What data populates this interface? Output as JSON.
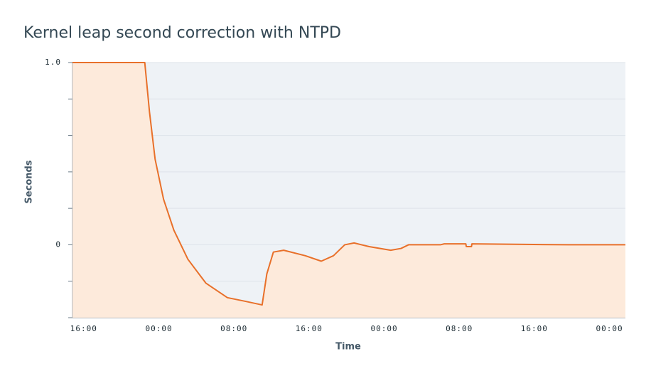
{
  "chart_data": {
    "type": "area",
    "title": "Kernel leap second correction with NTPD",
    "x_label": "Time",
    "y_label": "Seconds",
    "x": [
      -1.2,
      6.5,
      7.0,
      7.6,
      8.5,
      9.6,
      11.1,
      13.0,
      15.3,
      17.2,
      19.0,
      19.5,
      20.2,
      21.3,
      23.6,
      25.3,
      26.6,
      27.8,
      28.8,
      30.4,
      32.7,
      33.8,
      34.6,
      38.0,
      38.4,
      40.7,
      40.75,
      41.3,
      41.35,
      51.6,
      57.7
    ],
    "series": [
      {
        "name": "Seconds",
        "color": "#e8702a",
        "fill": "#fdeadb",
        "values": [
          1.0,
          1.0,
          0.73,
          0.47,
          0.25,
          0.08,
          -0.08,
          -0.21,
          -0.29,
          -0.31,
          -0.33,
          -0.16,
          -0.04,
          -0.03,
          -0.06,
          -0.09,
          -0.06,
          0.0,
          0.01,
          -0.01,
          -0.03,
          -0.02,
          0.0,
          0.0,
          0.005,
          0.005,
          -0.01,
          -0.01,
          0.005,
          0.0,
          0.0
        ]
      }
    ],
    "xlim": [
      -1.2,
      57.7
    ],
    "xticks": [
      {
        "value": 0,
        "label": "16:00"
      },
      {
        "value": 8,
        "label": "00:00"
      },
      {
        "value": 16,
        "label": "08:00"
      },
      {
        "value": 24,
        "label": "16:00"
      },
      {
        "value": 32,
        "label": "00:00"
      },
      {
        "value": 40,
        "label": "08:00"
      },
      {
        "value": 48,
        "label": "16:00"
      },
      {
        "value": 56,
        "label": "00:00"
      }
    ],
    "ylim": [
      -0.4,
      1.0
    ],
    "yticks": [
      {
        "value": 1.0,
        "label": "1.0"
      },
      0
    ],
    "yticks_minor": [
      0.8,
      0.6,
      0.4,
      0.2,
      -0.2,
      -0.4
    ],
    "grid": true,
    "background": "#eef2f6"
  }
}
